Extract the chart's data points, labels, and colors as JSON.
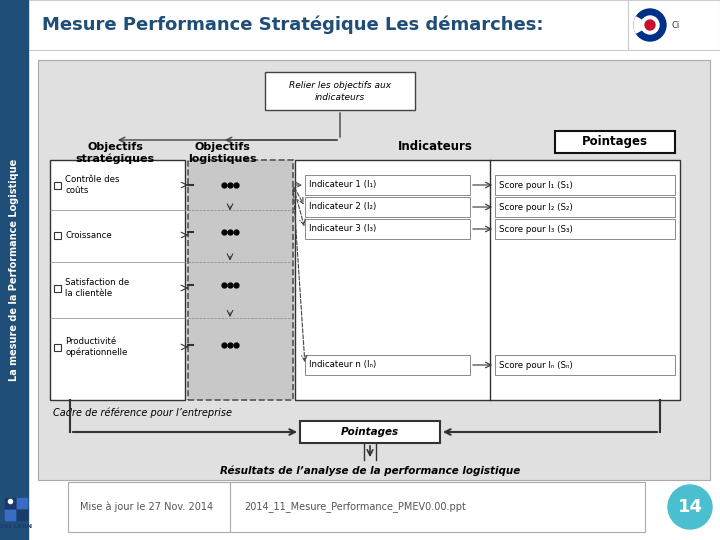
{
  "title": "Mesure Performance Stratégique Les démarches:",
  "title_color": "#1F4E79",
  "title_fontsize": 13,
  "bg_color": "#FFFFFF",
  "left_bar_color": "#1F4E79",
  "left_sidebar_text": "La mesure de la Performance Logistique",
  "box_top_line1": "Relier les objectifs aux",
  "box_top_line2": "indicateurs",
  "obj_strat_title": "Objectifs\nstratégiques",
  "obj_log_title": "Objectifs\nlogistiques",
  "indicateurs_title": "Indicateurs",
  "pointages_title": "Pointages",
  "obj_strat_items": [
    "Contrôle des\ncoûts",
    "Croissance",
    "Satisfaction de\nla clientèle",
    "Productivité\nopérationnelle"
  ],
  "indicateurs_items": [
    "Indicateur 1 (I₁)",
    "Indicateur 2 (I₂)",
    "Indicateur 3 (I₃)",
    "Indicateur n (Iₙ)"
  ],
  "pointages_items": [
    "Score pour I₁ (S₁)",
    "Score pour I₂ (S₂)",
    "Score pour I₃ (S₃)",
    "Score pour Iₙ (Sₙ)"
  ],
  "cadre_text": "Cadre de référence pour l’entreprise",
  "pointages_label": "Pointages",
  "result_text": "Résultats de l’analyse de la performance logistique",
  "footer_left": "Mise à jour le 27 Nov. 2014",
  "footer_right": "2014_11_Mesure_Performance_PMEV0.00.ppt",
  "page_num": "14",
  "page_circle_color": "#4BBFCF",
  "diagram_bg": "#E0E0E0",
  "dark_gray": "#555555",
  "black": "#111111"
}
